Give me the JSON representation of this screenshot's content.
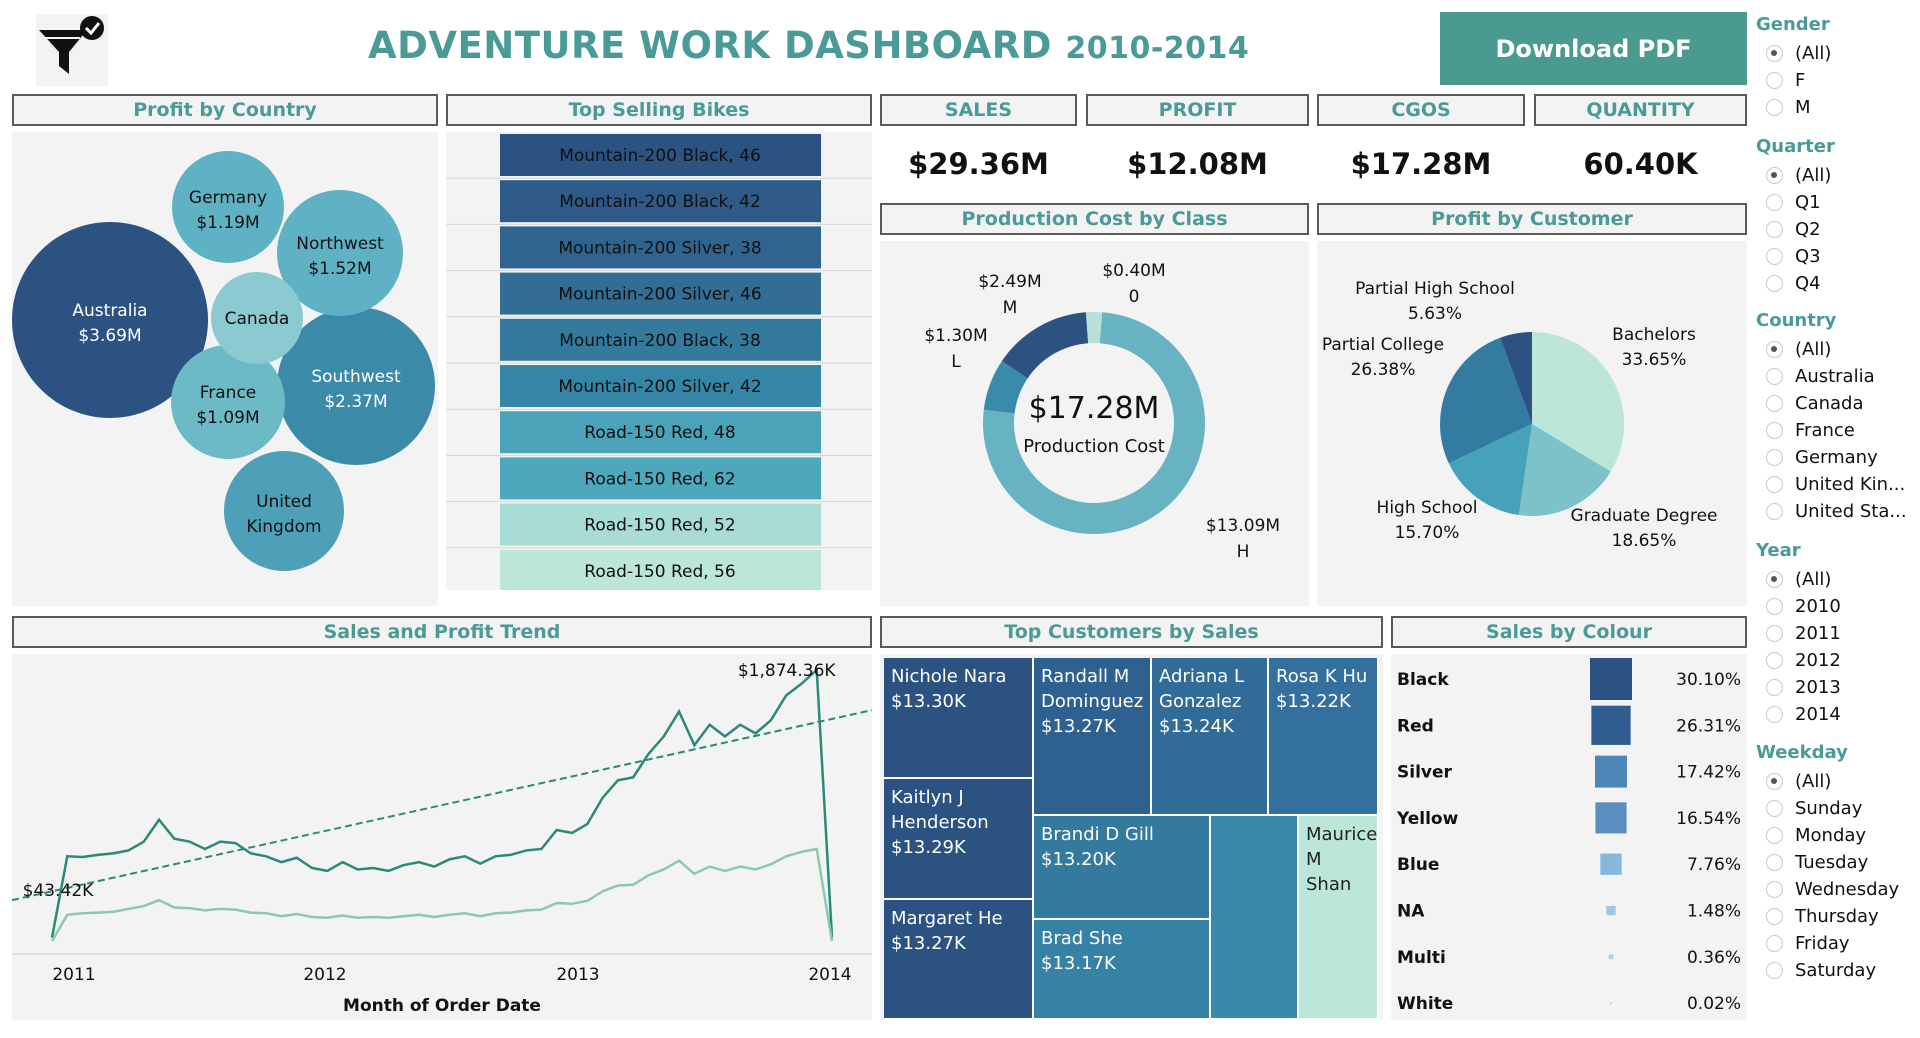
{
  "header": {
    "title": "ADVENTURE WORK DASHBOARD",
    "title_years": "2010-2014",
    "download_label": "Download PDF",
    "logo_icon": "filter-check-icon"
  },
  "colors": {
    "accent": "#4a9a98",
    "button": "#4a9a90",
    "dark_blue": "#2c5282",
    "teal": "#3a8aa8",
    "light_teal": "#a8dcd4"
  },
  "panels": {
    "profit_by_country": "Profit by Country",
    "top_selling_bikes": "Top Selling Bikes",
    "production_cost_by_class": "Production Cost by Class",
    "profit_by_customer": "Profit by Customer",
    "sales_and_profit_trend": "Sales and Profit Trend",
    "top_customers_by_sales": "Top Customers by Sales",
    "sales_by_colour": "Sales by Colour"
  },
  "kpis": [
    {
      "label": "SALES",
      "value": "$29.36M"
    },
    {
      "label": "PROFIT",
      "value": "$12.08M"
    },
    {
      "label": "CGOS",
      "value": "$17.28M"
    },
    {
      "label": "QUANTITY",
      "value": "60.40K"
    }
  ],
  "chart_data": [
    {
      "type": "bubble",
      "id": "profit_by_country",
      "title": "Profit by Country",
      "items": [
        {
          "name": "Australia",
          "label": "$3.69M",
          "value": 3.69
        },
        {
          "name": "Southwest",
          "label": "$2.37M",
          "value": 2.37
        },
        {
          "name": "Northwest",
          "label": "$1.52M",
          "value": 1.52
        },
        {
          "name": "Germany",
          "label": "$1.19M",
          "value": 1.19
        },
        {
          "name": "France",
          "label": "$1.09M",
          "value": 1.09
        },
        {
          "name": "United Kingdom",
          "label": "",
          "value": 1.2
        },
        {
          "name": "Canada",
          "label": "",
          "value": 0.7
        }
      ]
    },
    {
      "type": "bar",
      "id": "top_selling_bikes",
      "title": "Top Selling Bikes",
      "categories": [
        "Mountain-200 Black, 46",
        "Mountain-200 Black, 42",
        "Mountain-200 Silver, 38",
        "Mountain-200 Silver, 46",
        "Mountain-200 Black, 38",
        "Mountain-200 Silver, 42",
        "Road-150 Red, 48",
        "Road-150 Red, 62",
        "Road-150 Red, 52",
        "Road-150 Red, 56"
      ],
      "colors": [
        "#2c5282",
        "#2e5a88",
        "#30648e",
        "#326e94",
        "#337a9c",
        "#3586a6",
        "#4aa3b8",
        "#4ea8bc",
        "#a8dcd4",
        "#bce6d8"
      ]
    },
    {
      "type": "pie",
      "id": "production_cost_by_class",
      "title": "Production Cost by Class",
      "center_value": "$17.28M",
      "center_label": "Production Cost",
      "slices": [
        {
          "name": "H",
          "label": "$13.09M",
          "value": 13.09,
          "color": "#67b3c2"
        },
        {
          "name": "L",
          "label": "$1.30M",
          "value": 1.3,
          "color": "#3a8aaa"
        },
        {
          "name": "M",
          "label": "$2.49M",
          "value": 2.49,
          "color": "#2c5282"
        },
        {
          "name": "0",
          "label": "$0.40M",
          "value": 0.4,
          "color": "#b7e0d6"
        }
      ]
    },
    {
      "type": "pie",
      "id": "profit_by_customer",
      "title": "Profit by Customer",
      "slices": [
        {
          "name": "Bachelors",
          "label": "33.65%",
          "value": 33.65,
          "color": "#bce6d8"
        },
        {
          "name": "Graduate Degree",
          "label": "18.65%",
          "value": 18.65,
          "color": "#7ec2c9"
        },
        {
          "name": "High School",
          "label": "15.70%",
          "value": 15.7,
          "color": "#45a2b8"
        },
        {
          "name": "Partial College",
          "label": "26.38%",
          "value": 26.38,
          "color": "#337ba0"
        },
        {
          "name": "Partial High School",
          "label": "5.63%",
          "value": 5.63,
          "color": "#2c5282"
        }
      ]
    },
    {
      "type": "line",
      "id": "sales_and_profit_trend",
      "title": "Sales and Profit Trend",
      "xlabel": "Month of Order Date",
      "x_ticks": [
        "2011",
        "2012",
        "2013",
        "2014"
      ],
      "annotations": [
        "$1,874.36K",
        "$43.42K"
      ],
      "series": [
        {
          "values": [
            43.42,
            600,
            595,
            610,
            620,
            640,
            700,
            850,
            720,
            700,
            650,
            700,
            690,
            620,
            600,
            560,
            590,
            520,
            500,
            560,
            510,
            520,
            500,
            540,
            560,
            530,
            580,
            600,
            550,
            600,
            610,
            640,
            650,
            780,
            760,
            820,
            1000,
            1120,
            1140,
            1300,
            1420,
            1590,
            1360,
            1500,
            1420,
            1500,
            1440,
            1530,
            1700,
            1780,
            1874.36,
            43.42
          ],
          "color": "#2a8a7a"
        },
        {
          "values": [
            20,
            200,
            210,
            215,
            220,
            240,
            260,
            300,
            250,
            245,
            230,
            240,
            235,
            215,
            210,
            190,
            205,
            185,
            180,
            195,
            180,
            185,
            180,
            190,
            200,
            185,
            200,
            210,
            190,
            210,
            215,
            230,
            235,
            280,
            275,
            295,
            360,
            400,
            405,
            470,
            510,
            570,
            480,
            530,
            500,
            530,
            510,
            545,
            600,
            630,
            650,
            20
          ],
          "color": "#8cc8b0"
        }
      ],
      "trend": {
        "from": 300,
        "to": 1600,
        "style": "dashed"
      }
    },
    {
      "type": "treemap",
      "id": "top_customers_by_sales",
      "title": "Top Customers by Sales",
      "items": [
        {
          "name": "Nichole  Nara",
          "label": "$13.30K",
          "value": 13.3
        },
        {
          "name": "Kaitlyn J Henderson",
          "label": "$13.29K",
          "value": 13.29
        },
        {
          "name": "Margaret  He",
          "label": "$13.27K",
          "value": 13.27
        },
        {
          "name": "Randall M Dominguez",
          "label": "$13.27K",
          "value": 13.27
        },
        {
          "name": "Adriana L Gonzalez",
          "label": "$13.24K",
          "value": 13.24
        },
        {
          "name": "Rosa K Hu",
          "label": "$13.22K",
          "value": 13.22
        },
        {
          "name": "Brandi D Gill",
          "label": "$13.20K",
          "value": 13.2
        },
        {
          "name": "Brad  She",
          "label": "$13.17K",
          "value": 13.17
        },
        {
          "name": "",
          "label": "",
          "value": 13.1
        },
        {
          "name": "Maurice M Shan",
          "label": "",
          "value": 13.0
        }
      ]
    },
    {
      "type": "bar",
      "id": "sales_by_colour",
      "title": "Sales by Colour",
      "categories": [
        "Black",
        "Red",
        "Silver",
        "Yellow",
        "Blue",
        "NA",
        "Multi",
        "White"
      ],
      "values": [
        30.1,
        26.31,
        17.42,
        16.54,
        7.76,
        1.48,
        0.36,
        0.02
      ],
      "labels": [
        "30.10%",
        "26.31%",
        "17.42%",
        "16.54%",
        "7.76%",
        "1.48%",
        "0.36%",
        "0.02%"
      ],
      "colors": [
        "#2c5282",
        "#2f5d8f",
        "#4f86b8",
        "#5a8ec0",
        "#85b8dc",
        "#9cc8e4",
        "#a8d0e8",
        "#c0dcee"
      ]
    }
  ],
  "filters": [
    {
      "title": "Gender",
      "options": [
        "(All)",
        "F",
        "M"
      ],
      "selected": 0
    },
    {
      "title": "Quarter",
      "options": [
        "(All)",
        "Q1",
        "Q2",
        "Q3",
        "Q4"
      ],
      "selected": 0
    },
    {
      "title": "Country",
      "options": [
        "(All)",
        "Australia",
        "Canada",
        "France",
        "Germany",
        "United Kin...",
        "United Sta..."
      ],
      "selected": 0
    },
    {
      "title": "Year",
      "options": [
        "(All)",
        "2010",
        "2011",
        "2012",
        "2013",
        "2014"
      ],
      "selected": 0
    },
    {
      "title": "Weekday",
      "options": [
        "(All)",
        "Sunday",
        "Monday",
        "Tuesday",
        "Wednesday",
        "Thursday",
        "Friday",
        "Saturday"
      ],
      "selected": 0
    }
  ]
}
